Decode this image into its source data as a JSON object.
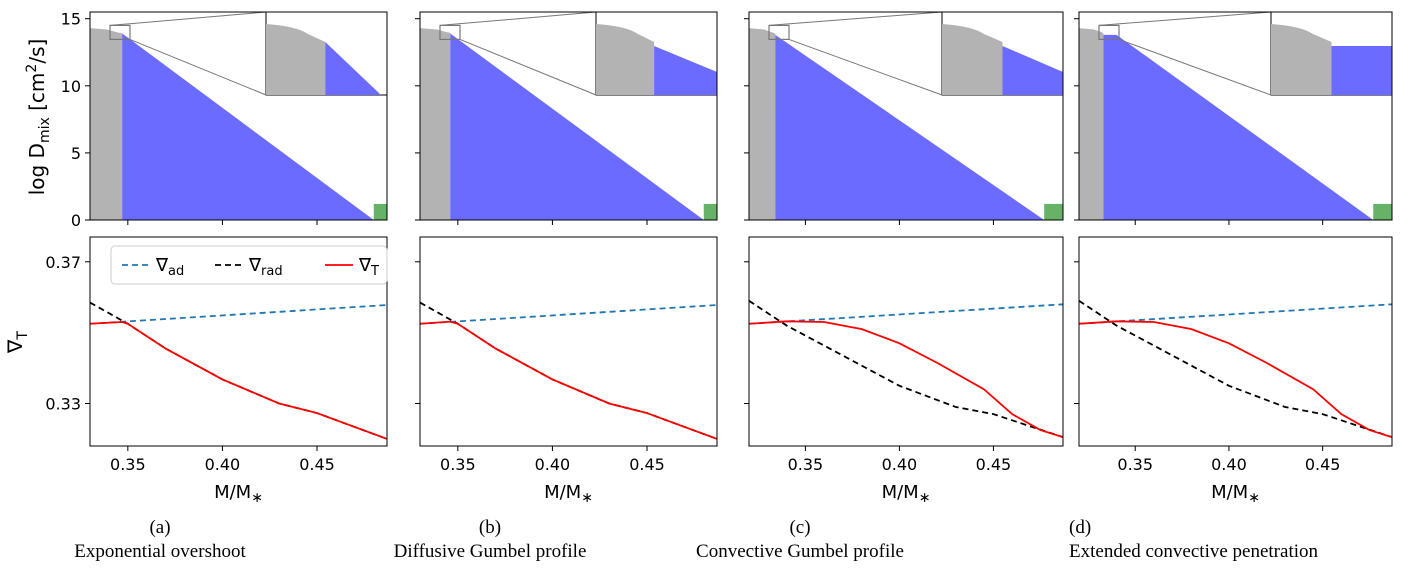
{
  "figure": {
    "top_ylabel": {
      "main": "log D",
      "sub": "mix",
      "units_pre": " [cm",
      "units_sup": "2",
      "units_post": "/s]"
    },
    "bottom_ylabel": {
      "main": "∇",
      "sub": "T"
    },
    "xlabel": {
      "main": "M/M",
      "sub": "∗"
    },
    "top_yticks": [
      "0",
      "5",
      "10",
      "15"
    ],
    "bottom_yticks": [
      "0.33",
      "0.37"
    ],
    "xticks": [
      "0.35",
      "0.40",
      "0.45"
    ],
    "colors": {
      "convective": "#b3b3b3",
      "overshoot": "#6b6bff",
      "green": "#66b266",
      "ad": "#1f77b4",
      "rad": "#000000",
      "T": "#ff0000"
    }
  },
  "legend": [
    {
      "main": "∇",
      "sub": "ad",
      "style": "dashed",
      "color": "#1f77b4"
    },
    {
      "main": "∇",
      "sub": "rad",
      "style": "dashed",
      "color": "#000000"
    },
    {
      "main": "∇",
      "sub": "T",
      "style": "solid",
      "color": "#ff0000"
    }
  ],
  "captions": [
    {
      "label": "(a)",
      "title": "Exponential overshoot"
    },
    {
      "label": "(b)",
      "title": "Diffusive Gumbel profile"
    },
    {
      "label": "(c)",
      "title": "Convective Gumbel profile"
    },
    {
      "label": "(d)",
      "title": "Extended convective penetration"
    }
  ],
  "chart_data": [
    {
      "type": "area",
      "panel": "a",
      "xlim": [
        0.33,
        0.487
      ],
      "ylim_top": [
        0,
        15.5
      ],
      "ylim_bottom": [
        0.318,
        0.377
      ],
      "core_edge": 0.347,
      "overshoot_end": 0.48,
      "overshoot_top": 13.9,
      "core_profile": [
        [
          0.33,
          14.3
        ],
        [
          0.339,
          14.2
        ],
        [
          0.344,
          14.0
        ],
        [
          0.347,
          13.9
        ]
      ],
      "grad_ad": [
        [
          0.33,
          0.3525
        ],
        [
          0.487,
          0.3578
        ]
      ],
      "grad_rad": [
        [
          0.33,
          0.3585
        ],
        [
          0.35,
          0.3525
        ],
        [
          0.37,
          0.3455
        ],
        [
          0.4,
          0.3368
        ],
        [
          0.43,
          0.33
        ],
        [
          0.45,
          0.3273
        ],
        [
          0.487,
          0.32
        ]
      ],
      "grad_T": [
        [
          0.33,
          0.3525
        ],
        [
          0.347,
          0.353
        ],
        [
          0.35,
          0.3525
        ],
        [
          0.37,
          0.3455
        ],
        [
          0.4,
          0.3368
        ],
        [
          0.43,
          0.33
        ],
        [
          0.45,
          0.3273
        ],
        [
          0.487,
          0.32
        ]
      ]
    },
    {
      "type": "area",
      "panel": "b",
      "xlim": [
        0.33,
        0.487
      ],
      "ylim_top": [
        0,
        15.5
      ],
      "ylim_bottom": [
        0.318,
        0.377
      ],
      "core_edge": 0.346,
      "overshoot_end": 0.48,
      "overshoot_top": 13.9,
      "core_profile": [
        [
          0.33,
          14.3
        ],
        [
          0.339,
          14.2
        ],
        [
          0.344,
          14.0
        ],
        [
          0.346,
          13.95
        ]
      ],
      "grad_ad": [
        [
          0.33,
          0.3525
        ],
        [
          0.487,
          0.3578
        ]
      ],
      "grad_rad": [
        [
          0.33,
          0.3585
        ],
        [
          0.35,
          0.3525
        ],
        [
          0.37,
          0.3455
        ],
        [
          0.4,
          0.3368
        ],
        [
          0.43,
          0.33
        ],
        [
          0.45,
          0.3273
        ],
        [
          0.487,
          0.32
        ]
      ],
      "grad_T": [
        [
          0.33,
          0.3525
        ],
        [
          0.346,
          0.3531
        ],
        [
          0.35,
          0.3525
        ],
        [
          0.37,
          0.3455
        ],
        [
          0.4,
          0.3368
        ],
        [
          0.43,
          0.33
        ],
        [
          0.45,
          0.3273
        ],
        [
          0.487,
          0.32
        ]
      ]
    },
    {
      "type": "area",
      "panel": "c",
      "xlim": [
        0.32,
        0.487
      ],
      "ylim_top": [
        0,
        15.5
      ],
      "ylim_bottom": [
        0.318,
        0.377
      ],
      "core_edge": 0.334,
      "overshoot_end": 0.477,
      "overshoot_top": 13.8,
      "core_profile": [
        [
          0.32,
          14.3
        ],
        [
          0.328,
          14.2
        ],
        [
          0.332,
          14.0
        ],
        [
          0.334,
          13.9
        ]
      ],
      "grad_ad": [
        [
          0.32,
          0.3525
        ],
        [
          0.487,
          0.358
        ]
      ],
      "grad_rad": [
        [
          0.32,
          0.359
        ],
        [
          0.34,
          0.352
        ],
        [
          0.37,
          0.3435
        ],
        [
          0.4,
          0.335
        ],
        [
          0.43,
          0.329
        ],
        [
          0.45,
          0.327
        ],
        [
          0.487,
          0.3205
        ]
      ],
      "grad_T": [
        [
          0.32,
          0.3525
        ],
        [
          0.34,
          0.3532
        ],
        [
          0.36,
          0.353
        ],
        [
          0.38,
          0.351
        ],
        [
          0.4,
          0.347
        ],
        [
          0.42,
          0.3415
        ],
        [
          0.445,
          0.334
        ],
        [
          0.46,
          0.327
        ],
        [
          0.475,
          0.3225
        ],
        [
          0.487,
          0.3205
        ]
      ]
    },
    {
      "type": "area",
      "panel": "d",
      "xlim": [
        0.32,
        0.487
      ],
      "ylim_top": [
        0,
        15.5
      ],
      "ylim_bottom": [
        0.318,
        0.377
      ],
      "core_edge": 0.333,
      "overshoot_end": 0.477,
      "overshoot_top": 13.8,
      "core_profile": [
        [
          0.32,
          14.3
        ],
        [
          0.328,
          14.2
        ],
        [
          0.332,
          14.0
        ],
        [
          0.333,
          13.9
        ]
      ],
      "plateau_end": 0.34,
      "grad_ad": [
        [
          0.32,
          0.3525
        ],
        [
          0.487,
          0.358
        ]
      ],
      "grad_rad": [
        [
          0.32,
          0.359
        ],
        [
          0.34,
          0.352
        ],
        [
          0.37,
          0.3435
        ],
        [
          0.4,
          0.335
        ],
        [
          0.43,
          0.329
        ],
        [
          0.45,
          0.327
        ],
        [
          0.487,
          0.3205
        ]
      ],
      "grad_T": [
        [
          0.32,
          0.3525
        ],
        [
          0.34,
          0.3532
        ],
        [
          0.36,
          0.353
        ],
        [
          0.38,
          0.351
        ],
        [
          0.4,
          0.347
        ],
        [
          0.42,
          0.3415
        ],
        [
          0.445,
          0.334
        ],
        [
          0.46,
          0.327
        ],
        [
          0.475,
          0.3225
        ],
        [
          0.487,
          0.3205
        ]
      ]
    }
  ]
}
